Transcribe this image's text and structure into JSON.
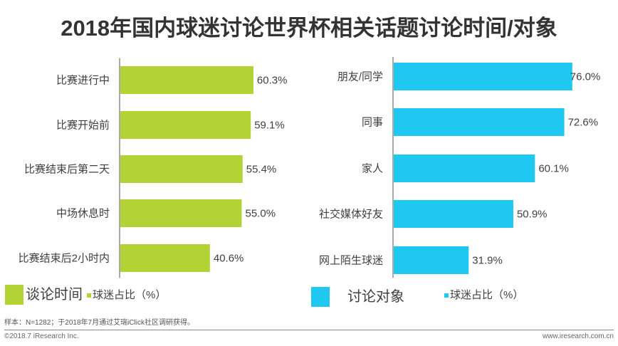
{
  "title": "2018年国内球迷讨论世界杯相关话题讨论时间/对象",
  "chart_data": [
    {
      "type": "bar",
      "orientation": "horizontal",
      "name": "谈论时间",
      "categories": [
        "比赛进行中",
        "比赛开始前",
        "比赛结束后第二天",
        "中场休息时",
        "比赛结束后2小时内"
      ],
      "values": [
        60.3,
        59.1,
        55.4,
        55.0,
        40.6
      ],
      "labels": [
        "60.3%",
        "59.1%",
        "55.4%",
        "55.0%",
        "40.6%"
      ],
      "legend": "球迷占比（%）",
      "color": "#b2d235"
    },
    {
      "type": "bar",
      "orientation": "horizontal",
      "name": "讨论对象",
      "categories": [
        "朋友/同学",
        "同事",
        "家人",
        "社交媒体好友",
        "网上陌生球迷"
      ],
      "values": [
        76.0,
        72.6,
        60.1,
        50.9,
        31.9
      ],
      "labels": [
        "76.0%",
        "72.6%",
        "60.1%",
        "50.9%",
        "31.9%"
      ],
      "legend": "球迷占比（%）",
      "color": "#1fc8f0"
    }
  ],
  "note": "样本：N=1282；于2018年7月通过艾瑞iClick社区调研获得。",
  "footer": {
    "left": "©2018.7 iResearch Inc.",
    "right": "www.iresearch.com.cn"
  }
}
